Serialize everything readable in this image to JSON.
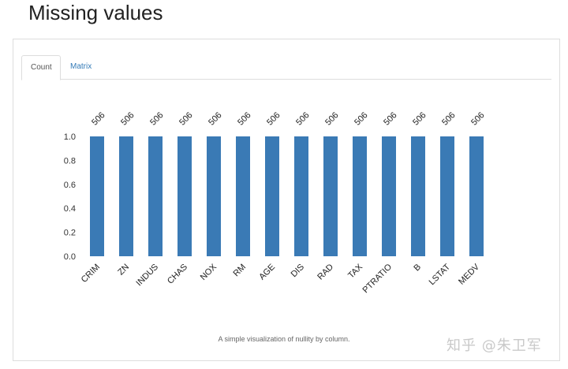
{
  "page": {
    "title": "Missing values"
  },
  "tabs": [
    {
      "label": "Count",
      "active": true
    },
    {
      "label": "Matrix",
      "active": false
    }
  ],
  "chart_data": {
    "type": "bar",
    "categories": [
      "CRIM",
      "ZN",
      "INDUS",
      "CHAS",
      "NOX",
      "RM",
      "AGE",
      "DIS",
      "RAD",
      "TAX",
      "PTRATIO",
      "B",
      "LSTAT",
      "MEDV"
    ],
    "values": [
      1.0,
      1.0,
      1.0,
      1.0,
      1.0,
      1.0,
      1.0,
      1.0,
      1.0,
      1.0,
      1.0,
      1.0,
      1.0,
      1.0
    ],
    "data_labels": [
      "506",
      "506",
      "506",
      "506",
      "506",
      "506",
      "506",
      "506",
      "506",
      "506",
      "506",
      "506",
      "506",
      "506"
    ],
    "yticks": [
      "0.0",
      "0.2",
      "0.4",
      "0.6",
      "0.8",
      "1.0"
    ],
    "ylim": [
      0,
      1.0
    ],
    "bar_color": "#3a7ab5",
    "grid": false
  },
  "caption": "A simple visualization of nullity by column.",
  "watermark": "知乎 @朱卫军"
}
